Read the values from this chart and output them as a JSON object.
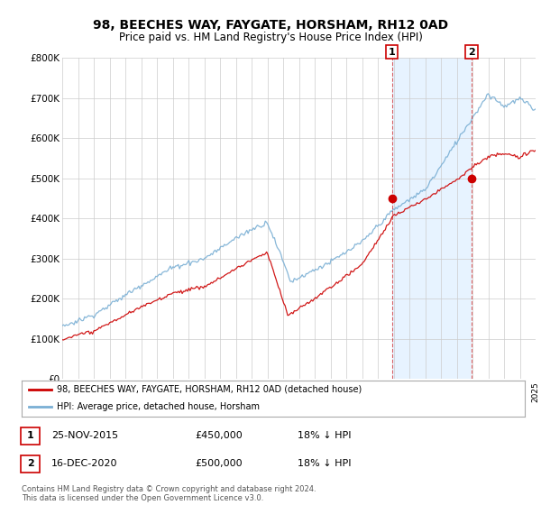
{
  "title": "98, BEECHES WAY, FAYGATE, HORSHAM, RH12 0AD",
  "subtitle": "Price paid vs. HM Land Registry's House Price Index (HPI)",
  "background_color": "#ffffff",
  "plot_bg_color": "#ffffff",
  "shade_color": "#ddeeff",
  "legend_line1": "98, BEECHES WAY, FAYGATE, HORSHAM, RH12 0AD (detached house)",
  "legend_line2": "HPI: Average price, detached house, Horsham",
  "transaction1_date": "25-NOV-2015",
  "transaction1_price": "£450,000",
  "transaction1_hpi": "18% ↓ HPI",
  "transaction2_date": "16-DEC-2020",
  "transaction2_price": "£500,000",
  "transaction2_hpi": "18% ↓ HPI",
  "footer": "Contains HM Land Registry data © Crown copyright and database right 2024.\nThis data is licensed under the Open Government Licence v3.0.",
  "red_color": "#cc0000",
  "blue_color": "#7aafd4",
  "marker1_x": 2015.9,
  "marker1_y": 450000,
  "marker2_x": 2020.95,
  "marker2_y": 500000,
  "xmin": 1995,
  "xmax": 2025,
  "ymin": 0,
  "ymax": 800000,
  "yticks": [
    0,
    100000,
    200000,
    300000,
    400000,
    500000,
    600000,
    700000,
    800000
  ],
  "ylabels": [
    "£0",
    "£100K",
    "£200K",
    "£300K",
    "£400K",
    "£500K",
    "£600K",
    "£700K",
    "£800K"
  ]
}
